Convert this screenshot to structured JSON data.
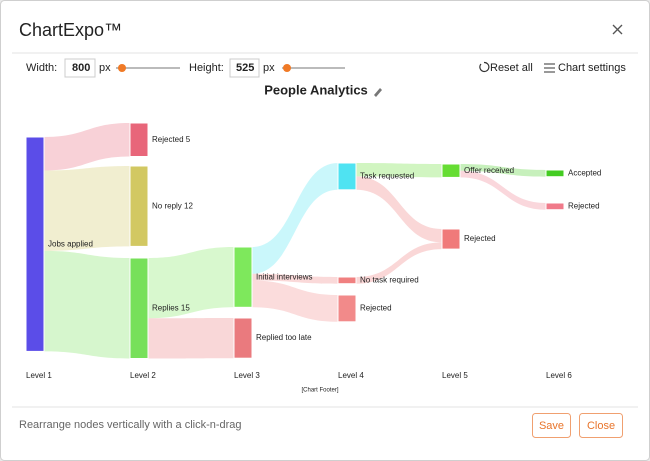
{
  "header": {
    "title": "ChartExpo™"
  },
  "toolbar": {
    "width_label": "Width:",
    "width_value": "800",
    "width_unit": "px",
    "height_label": "Height:",
    "height_value": "525",
    "height_unit": "px",
    "reset": "Reset all",
    "settings": "Chart settings"
  },
  "chart_data": {
    "type": "sankey",
    "title": "People Analytics",
    "levels": [
      "Level 1",
      "Level 2",
      "Level 3",
      "Level 4",
      "Level 5",
      "Level 6"
    ],
    "nodes": [
      {
        "label": "Jobs applied",
        "color": "#5b4de8"
      },
      {
        "label": "Rejected 5",
        "color": "#e8667a"
      },
      {
        "label": "No reply 12",
        "color": "#d2c862"
      },
      {
        "label": "Replies 15",
        "color": "#77e05a"
      },
      {
        "label": "Initial interviews",
        "color": "#7ee85c"
      },
      {
        "label": "Replied too late",
        "color": "#ea7a7e"
      },
      {
        "label": "Task requested",
        "color": "#4fe3f2"
      },
      {
        "label": "No task required",
        "color": "#f08080"
      },
      {
        "label": "Rejected",
        "color": "#f28a8a"
      },
      {
        "label": "Offer received",
        "color": "#66dd33"
      },
      {
        "label": "Rejected",
        "color": "#f07a7a"
      },
      {
        "label": "Accepted",
        "color": "#44cc22"
      },
      {
        "label": "Rejected",
        "color": "#f07a8a"
      }
    ],
    "links": [
      {
        "source": 0,
        "target": 1,
        "value": 5
      },
      {
        "source": 0,
        "target": 2,
        "value": 12
      },
      {
        "source": 0,
        "target": 3,
        "value": 15
      },
      {
        "source": 3,
        "target": 4,
        "value": 9
      },
      {
        "source": 3,
        "target": 5,
        "value": 6
      },
      {
        "source": 4,
        "target": 6,
        "value": 4
      },
      {
        "source": 4,
        "target": 7,
        "value": 1
      },
      {
        "source": 4,
        "target": 8,
        "value": 4
      },
      {
        "source": 6,
        "target": 9,
        "value": 2
      },
      {
        "source": 6,
        "target": 10,
        "value": 2
      },
      {
        "source": 7,
        "target": 10,
        "value": 1
      },
      {
        "source": 9,
        "target": 11,
        "value": 1
      },
      {
        "source": 9,
        "target": 12,
        "value": 1
      }
    ],
    "footer": "[Chart Footer]"
  },
  "footer": {
    "hint": "Rearrange nodes vertically with a click-n-drag",
    "save": "Save",
    "close": "Close"
  }
}
